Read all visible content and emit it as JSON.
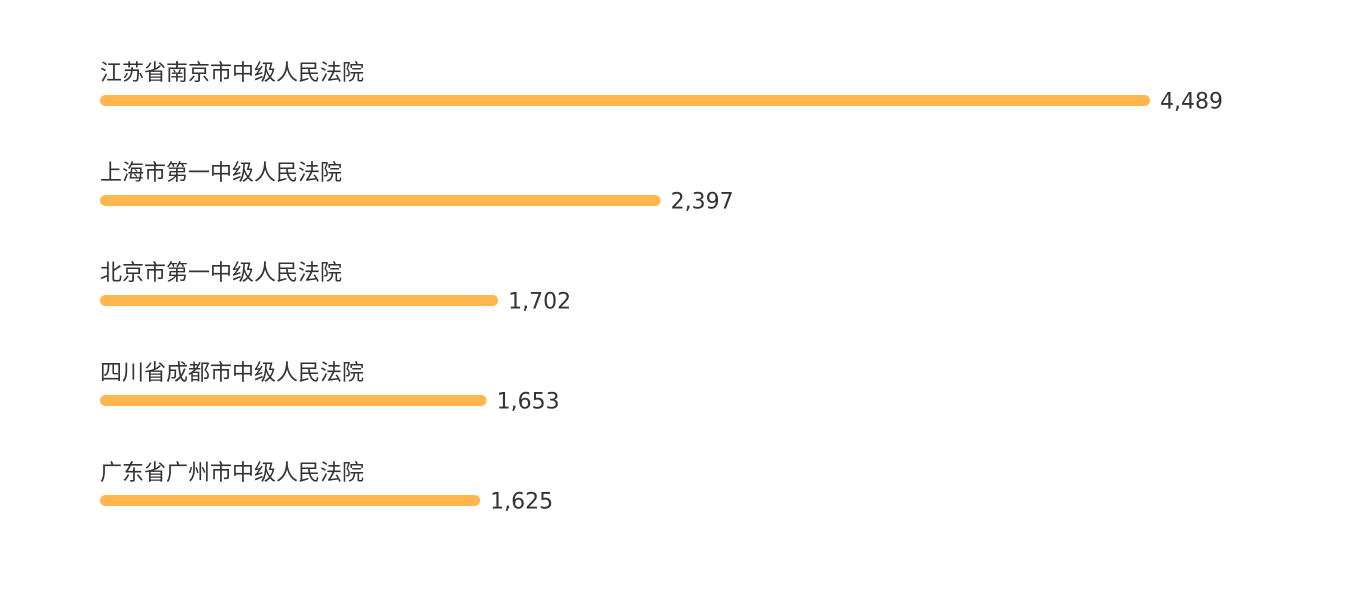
{
  "chart_data": {
    "type": "bar",
    "orientation": "horizontal",
    "title": "",
    "xlabel": "",
    "ylabel": "",
    "categories": [
      "江苏省南京市中级人民法院",
      "上海市第一中级人民法院",
      "北京市第一中级人民法院",
      "四川省成都市中级人民法院",
      "广东省广州市中级人民法院"
    ],
    "values": [
      4489,
      2397,
      1702,
      1653,
      1625
    ],
    "value_labels": [
      "4,489",
      "2,397",
      "1,702",
      "1,653",
      "1,625"
    ],
    "bar_color": "#FFB74D",
    "text_color": "#333333",
    "grid": false,
    "legend": "none"
  }
}
